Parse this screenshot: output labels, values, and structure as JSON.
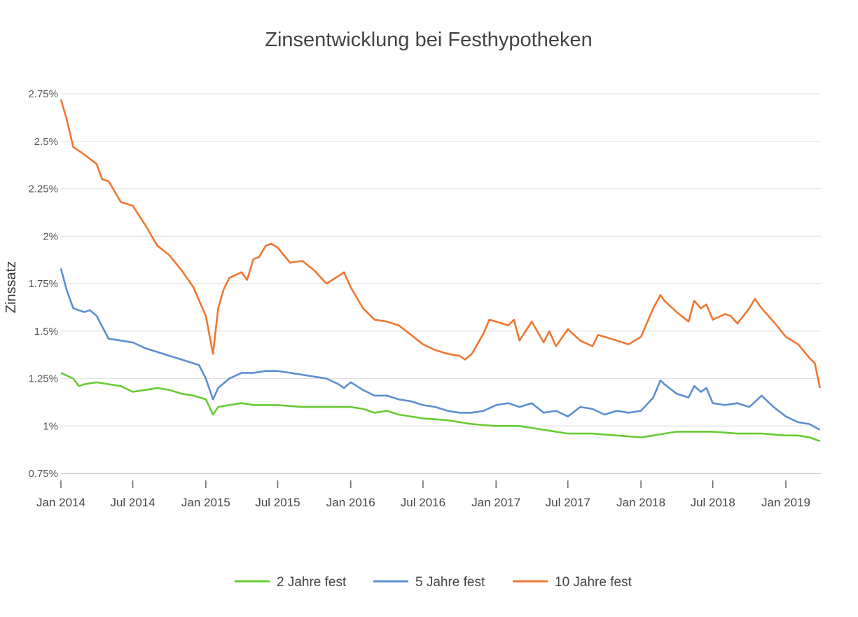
{
  "chart_data": {
    "type": "line",
    "title": "Zinsentwicklung bei Festhypotheken",
    "xlabel": "",
    "ylabel": "Zinssatz",
    "ylim": [
      0.75,
      2.75
    ],
    "xlim": [
      "2014-01-01",
      "2019-04-15"
    ],
    "grid": true,
    "legend_position": "bottom",
    "y_ticks": [
      0.75,
      1,
      1.25,
      1.5,
      1.75,
      2,
      2.25,
      2.5,
      2.75
    ],
    "y_tick_labels": [
      "0.75%",
      "1%",
      "1.25%",
      "1.5%",
      "1.75%",
      "2%",
      "2.25%",
      "2.5%",
      "2.75%"
    ],
    "x_ticks": [
      "2014-01-01",
      "2014-07-01",
      "2015-01-01",
      "2015-07-01",
      "2016-01-01",
      "2016-07-01",
      "2017-01-01",
      "2017-07-01",
      "2018-01-01",
      "2018-07-01",
      "2019-01-01"
    ],
    "x_tick_labels": [
      "Jan 2014",
      "Jul 2014",
      "Jan 2015",
      "Jul 2015",
      "Jan 2016",
      "Jul 2016",
      "Jan 2017",
      "Jul 2017",
      "Jan 2018",
      "Jul 2018",
      "Jan 2019"
    ],
    "series": [
      {
        "name": "2 Jahre fest",
        "color": "#66cc33",
        "points": [
          [
            "2014-01-01",
            1.28
          ],
          [
            "2014-02-01",
            1.25
          ],
          [
            "2014-02-15",
            1.21
          ],
          [
            "2014-03-01",
            1.22
          ],
          [
            "2014-04-01",
            1.23
          ],
          [
            "2014-05-01",
            1.22
          ],
          [
            "2014-06-01",
            1.21
          ],
          [
            "2014-07-01",
            1.18
          ],
          [
            "2014-08-01",
            1.19
          ],
          [
            "2014-09-01",
            1.2
          ],
          [
            "2014-10-01",
            1.19
          ],
          [
            "2014-11-01",
            1.17
          ],
          [
            "2014-12-01",
            1.16
          ],
          [
            "2015-01-01",
            1.14
          ],
          [
            "2015-01-19",
            1.06
          ],
          [
            "2015-02-01",
            1.1
          ],
          [
            "2015-03-01",
            1.11
          ],
          [
            "2015-04-01",
            1.12
          ],
          [
            "2015-05-01",
            1.11
          ],
          [
            "2015-07-01",
            1.11
          ],
          [
            "2015-09-01",
            1.1
          ],
          [
            "2015-11-01",
            1.1
          ],
          [
            "2016-01-01",
            1.1
          ],
          [
            "2016-02-01",
            1.09
          ],
          [
            "2016-03-01",
            1.07
          ],
          [
            "2016-04-01",
            1.08
          ],
          [
            "2016-05-01",
            1.06
          ],
          [
            "2016-07-01",
            1.04
          ],
          [
            "2016-09-01",
            1.03
          ],
          [
            "2016-11-01",
            1.01
          ],
          [
            "2017-01-01",
            1.0
          ],
          [
            "2017-03-01",
            1.0
          ],
          [
            "2017-04-01",
            0.99
          ],
          [
            "2017-05-01",
            0.98
          ],
          [
            "2017-07-01",
            0.96
          ],
          [
            "2017-09-01",
            0.96
          ],
          [
            "2017-11-01",
            0.95
          ],
          [
            "2018-01-01",
            0.94
          ],
          [
            "2018-02-01",
            0.95
          ],
          [
            "2018-03-01",
            0.96
          ],
          [
            "2018-04-01",
            0.97
          ],
          [
            "2018-06-01",
            0.97
          ],
          [
            "2018-07-01",
            0.97
          ],
          [
            "2018-09-01",
            0.96
          ],
          [
            "2018-11-01",
            0.96
          ],
          [
            "2019-01-01",
            0.95
          ],
          [
            "2019-02-01",
            0.95
          ],
          [
            "2019-03-01",
            0.94
          ],
          [
            "2019-03-28",
            0.92
          ]
        ]
      },
      {
        "name": "5 Jahre fest",
        "color": "#5b8fd0",
        "points": [
          [
            "2014-01-01",
            1.83
          ],
          [
            "2014-01-15",
            1.72
          ],
          [
            "2014-02-01",
            1.62
          ],
          [
            "2014-03-01",
            1.6
          ],
          [
            "2014-03-15",
            1.61
          ],
          [
            "2014-04-01",
            1.58
          ],
          [
            "2014-05-01",
            1.46
          ],
          [
            "2014-06-01",
            1.45
          ],
          [
            "2014-07-01",
            1.44
          ],
          [
            "2014-08-01",
            1.41
          ],
          [
            "2014-09-01",
            1.39
          ],
          [
            "2014-10-01",
            1.37
          ],
          [
            "2014-11-01",
            1.35
          ],
          [
            "2014-12-01",
            1.33
          ],
          [
            "2014-12-15",
            1.32
          ],
          [
            "2015-01-01",
            1.25
          ],
          [
            "2015-01-19",
            1.14
          ],
          [
            "2015-02-01",
            1.2
          ],
          [
            "2015-03-01",
            1.25
          ],
          [
            "2015-04-01",
            1.28
          ],
          [
            "2015-05-01",
            1.28
          ],
          [
            "2015-06-01",
            1.29
          ],
          [
            "2015-07-01",
            1.29
          ],
          [
            "2015-08-01",
            1.28
          ],
          [
            "2015-09-01",
            1.27
          ],
          [
            "2015-10-01",
            1.26
          ],
          [
            "2015-11-01",
            1.25
          ],
          [
            "2015-12-01",
            1.22
          ],
          [
            "2015-12-15",
            1.2
          ],
          [
            "2016-01-01",
            1.23
          ],
          [
            "2016-02-01",
            1.19
          ],
          [
            "2016-03-01",
            1.16
          ],
          [
            "2016-04-01",
            1.16
          ],
          [
            "2016-05-01",
            1.14
          ],
          [
            "2016-06-01",
            1.13
          ],
          [
            "2016-07-01",
            1.11
          ],
          [
            "2016-08-01",
            1.1
          ],
          [
            "2016-09-01",
            1.08
          ],
          [
            "2016-10-01",
            1.07
          ],
          [
            "2016-11-01",
            1.07
          ],
          [
            "2016-12-01",
            1.08
          ],
          [
            "2017-01-01",
            1.11
          ],
          [
            "2017-02-01",
            1.12
          ],
          [
            "2017-03-01",
            1.1
          ],
          [
            "2017-04-01",
            1.12
          ],
          [
            "2017-05-01",
            1.07
          ],
          [
            "2017-06-01",
            1.08
          ],
          [
            "2017-07-01",
            1.05
          ],
          [
            "2017-08-01",
            1.1
          ],
          [
            "2017-09-01",
            1.09
          ],
          [
            "2017-10-01",
            1.06
          ],
          [
            "2017-11-01",
            1.08
          ],
          [
            "2017-12-01",
            1.07
          ],
          [
            "2018-01-01",
            1.08
          ],
          [
            "2018-02-01",
            1.15
          ],
          [
            "2018-02-19",
            1.24
          ],
          [
            "2018-03-01",
            1.22
          ],
          [
            "2018-04-01",
            1.17
          ],
          [
            "2018-05-01",
            1.15
          ],
          [
            "2018-05-15",
            1.21
          ],
          [
            "2018-06-01",
            1.18
          ],
          [
            "2018-06-15",
            1.2
          ],
          [
            "2018-07-01",
            1.12
          ],
          [
            "2018-08-01",
            1.11
          ],
          [
            "2018-09-01",
            1.12
          ],
          [
            "2018-10-01",
            1.1
          ],
          [
            "2018-11-01",
            1.16
          ],
          [
            "2018-12-01",
            1.1
          ],
          [
            "2019-01-01",
            1.05
          ],
          [
            "2019-02-01",
            1.02
          ],
          [
            "2019-03-01",
            1.01
          ],
          [
            "2019-03-28",
            0.98
          ]
        ]
      },
      {
        "name": "10 Jahre fest",
        "color": "#ef7730",
        "points": [
          [
            "2014-01-01",
            2.72
          ],
          [
            "2014-01-15",
            2.62
          ],
          [
            "2014-02-01",
            2.47
          ],
          [
            "2014-03-01",
            2.43
          ],
          [
            "2014-04-01",
            2.38
          ],
          [
            "2014-04-15",
            2.3
          ],
          [
            "2014-05-01",
            2.29
          ],
          [
            "2014-06-01",
            2.18
          ],
          [
            "2014-07-01",
            2.16
          ],
          [
            "2014-08-01",
            2.06
          ],
          [
            "2014-09-01",
            1.95
          ],
          [
            "2014-10-01",
            1.9
          ],
          [
            "2014-11-01",
            1.82
          ],
          [
            "2014-12-01",
            1.73
          ],
          [
            "2014-12-15",
            1.66
          ],
          [
            "2015-01-01",
            1.58
          ],
          [
            "2015-01-19",
            1.38
          ],
          [
            "2015-02-01",
            1.62
          ],
          [
            "2015-02-15",
            1.72
          ],
          [
            "2015-03-01",
            1.78
          ],
          [
            "2015-04-01",
            1.81
          ],
          [
            "2015-04-15",
            1.77
          ],
          [
            "2015-05-01",
            1.88
          ],
          [
            "2015-05-15",
            1.89
          ],
          [
            "2015-06-01",
            1.95
          ],
          [
            "2015-06-15",
            1.96
          ],
          [
            "2015-07-01",
            1.94
          ],
          [
            "2015-08-01",
            1.86
          ],
          [
            "2015-09-01",
            1.87
          ],
          [
            "2015-10-01",
            1.82
          ],
          [
            "2015-11-01",
            1.75
          ],
          [
            "2015-12-01",
            1.79
          ],
          [
            "2015-12-15",
            1.81
          ],
          [
            "2016-01-01",
            1.73
          ],
          [
            "2016-02-01",
            1.62
          ],
          [
            "2016-03-01",
            1.56
          ],
          [
            "2016-04-01",
            1.55
          ],
          [
            "2016-05-01",
            1.53
          ],
          [
            "2016-06-01",
            1.48
          ],
          [
            "2016-07-01",
            1.43
          ],
          [
            "2016-08-01",
            1.4
          ],
          [
            "2016-09-01",
            1.38
          ],
          [
            "2016-10-01",
            1.37
          ],
          [
            "2016-10-15",
            1.35
          ],
          [
            "2016-11-01",
            1.38
          ],
          [
            "2016-12-01",
            1.49
          ],
          [
            "2016-12-15",
            1.56
          ],
          [
            "2017-01-01",
            1.55
          ],
          [
            "2017-02-01",
            1.53
          ],
          [
            "2017-02-15",
            1.56
          ],
          [
            "2017-03-01",
            1.45
          ],
          [
            "2017-04-01",
            1.55
          ],
          [
            "2017-05-01",
            1.44
          ],
          [
            "2017-05-15",
            1.5
          ],
          [
            "2017-06-01",
            1.42
          ],
          [
            "2017-07-01",
            1.51
          ],
          [
            "2017-08-01",
            1.45
          ],
          [
            "2017-09-01",
            1.42
          ],
          [
            "2017-09-15",
            1.48
          ],
          [
            "2017-10-01",
            1.47
          ],
          [
            "2017-11-01",
            1.45
          ],
          [
            "2017-12-01",
            1.43
          ],
          [
            "2018-01-01",
            1.47
          ],
          [
            "2018-02-01",
            1.62
          ],
          [
            "2018-02-19",
            1.69
          ],
          [
            "2018-03-01",
            1.66
          ],
          [
            "2018-04-01",
            1.6
          ],
          [
            "2018-05-01",
            1.55
          ],
          [
            "2018-05-15",
            1.66
          ],
          [
            "2018-06-01",
            1.62
          ],
          [
            "2018-06-15",
            1.64
          ],
          [
            "2018-07-01",
            1.56
          ],
          [
            "2018-08-01",
            1.59
          ],
          [
            "2018-08-15",
            1.58
          ],
          [
            "2018-09-01",
            1.54
          ],
          [
            "2018-10-01",
            1.62
          ],
          [
            "2018-10-15",
            1.67
          ],
          [
            "2018-11-01",
            1.62
          ],
          [
            "2018-12-01",
            1.55
          ],
          [
            "2019-01-01",
            1.47
          ],
          [
            "2019-02-01",
            1.43
          ],
          [
            "2019-03-01",
            1.36
          ],
          [
            "2019-03-15",
            1.33
          ],
          [
            "2019-03-28",
            1.2
          ]
        ]
      }
    ]
  }
}
